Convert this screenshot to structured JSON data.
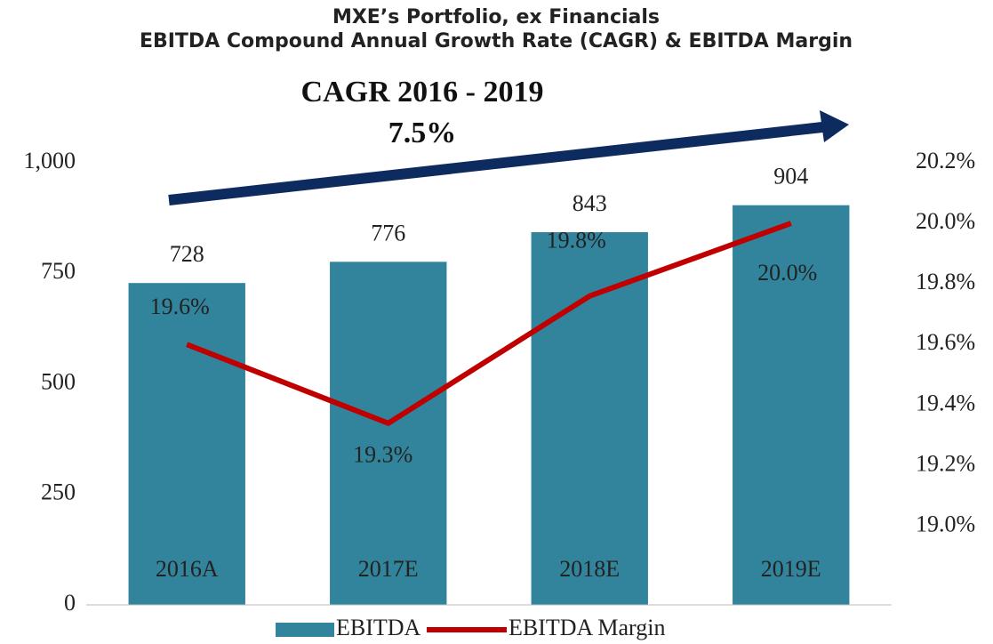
{
  "chart_data": {
    "type": "bar",
    "title": "MXE’s Portfolio, ex Financials",
    "subtitle": "EBITDA Compound Annual Growth Rate (CAGR) & EBITDA Margin",
    "annotations": [
      "CAGR 2016 - 2019",
      "7.5%"
    ],
    "categories": [
      "2016A",
      "2017E",
      "2018E",
      "2019E"
    ],
    "series": [
      {
        "name": "EBITDA",
        "type": "bar",
        "color": "#31849b",
        "values": [
          728,
          776,
          843,
          904
        ]
      },
      {
        "name": "EBITDA Margin",
        "type": "line",
        "axis": "y2",
        "color": "#c00000",
        "values": [
          19.6,
          19.34,
          19.76,
          20.0
        ],
        "value_labels": [
          "19.6%",
          "19.3%",
          "19.8%",
          "20.0%"
        ]
      }
    ],
    "ylim": [
      0,
      1000
    ],
    "yticks": [
      0,
      250,
      500,
      750,
      {
        "value": 1000,
        "label": "1,000"
      }
    ],
    "y2lim": [
      18.74,
      20.2
    ],
    "y2ticks": [
      {
        "value": 19.0,
        "label": "19.0%"
      },
      {
        "value": 19.2,
        "label": "19.2%"
      },
      {
        "value": 19.4,
        "label": "19.4%"
      },
      {
        "value": 19.6,
        "label": "19.6%"
      },
      {
        "value": 19.8,
        "label": "19.8%"
      },
      {
        "value": 20.0,
        "label": "20.0%"
      },
      {
        "value": 20.2,
        "label": "20.2%"
      }
    ],
    "grid": false,
    "legend": "bottom"
  }
}
